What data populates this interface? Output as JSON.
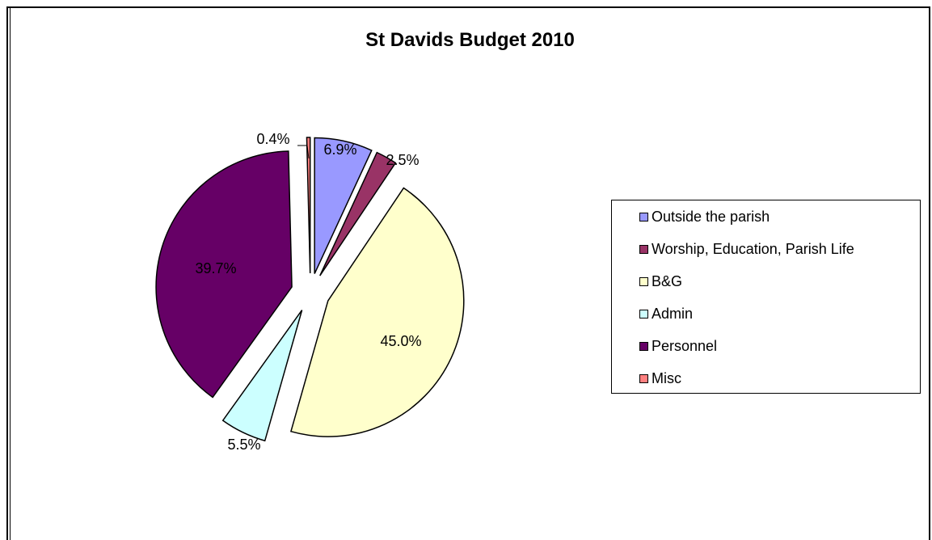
{
  "chart_data": {
    "type": "pie",
    "title": "St Davids Budget 2010",
    "exploded": true,
    "legend_position": "right",
    "slices": [
      {
        "label": "Outside the parish",
        "value": 6.9,
        "value_label": "6.9%",
        "color": "#9999ff"
      },
      {
        "label": "Worship, Education, Parish Life",
        "value": 2.5,
        "value_label": "2.5%",
        "color": "#993366"
      },
      {
        "label": "B&G",
        "value": 45.0,
        "value_label": "45.0%",
        "color": "#ffffcc"
      },
      {
        "label": "Admin",
        "value": 5.5,
        "value_label": "5.5%",
        "color": "#ccffff"
      },
      {
        "label": "Personnel",
        "value": 39.7,
        "value_label": "39.7%",
        "color": "#660066"
      },
      {
        "label": "Misc",
        "value": 0.4,
        "value_label": "0.4%",
        "color": "#ff8080"
      }
    ]
  }
}
